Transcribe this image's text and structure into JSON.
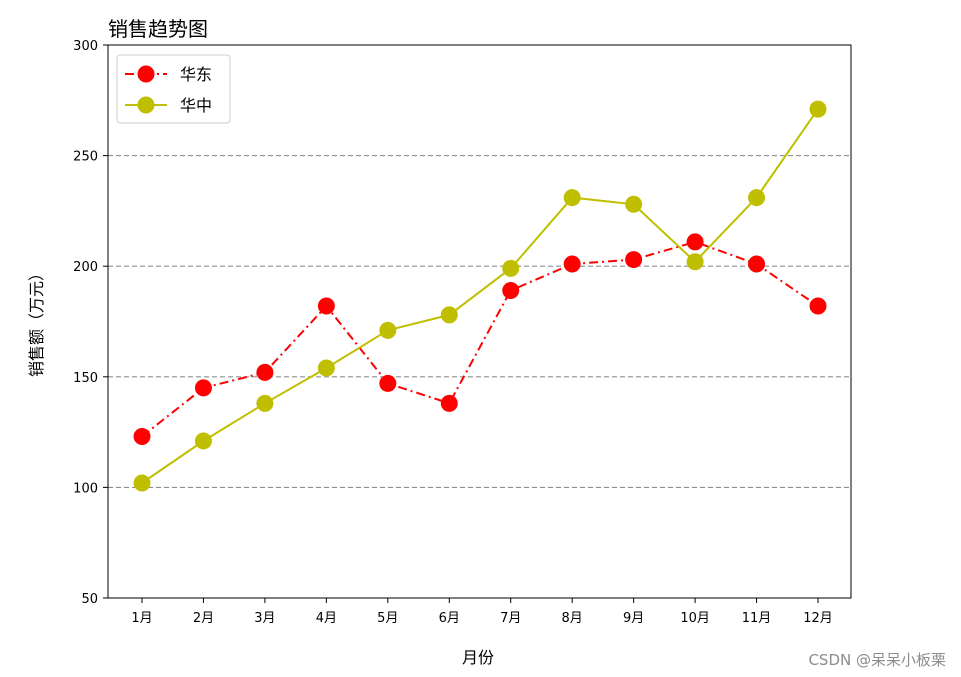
{
  "chart_data": {
    "type": "line",
    "title": "销售趋势图",
    "xlabel": "月份",
    "ylabel": "销售额（万元）",
    "categories": [
      "1月",
      "2月",
      "3月",
      "4月",
      "5月",
      "6月",
      "7月",
      "8月",
      "9月",
      "10月",
      "11月",
      "12月"
    ],
    "ylim": [
      50,
      300
    ],
    "yticks": [
      50,
      100,
      150,
      200,
      250,
      300
    ],
    "grid": "horizontal-dashed",
    "legend_position": "top-left",
    "series": [
      {
        "name": "华东",
        "values": [
          123,
          145,
          152,
          182,
          147,
          138,
          189,
          201,
          203,
          211,
          201,
          182
        ],
        "color": "#ff0000",
        "linestyle": "dashdot",
        "marker": "circle"
      },
      {
        "name": "华中",
        "values": [
          102,
          121,
          138,
          154,
          171,
          178,
          199,
          231,
          228,
          202,
          231,
          271
        ],
        "color": "#bfbf00",
        "linestyle": "solid",
        "marker": "circle"
      }
    ]
  },
  "watermark": "CSDN @呆呆小板栗"
}
